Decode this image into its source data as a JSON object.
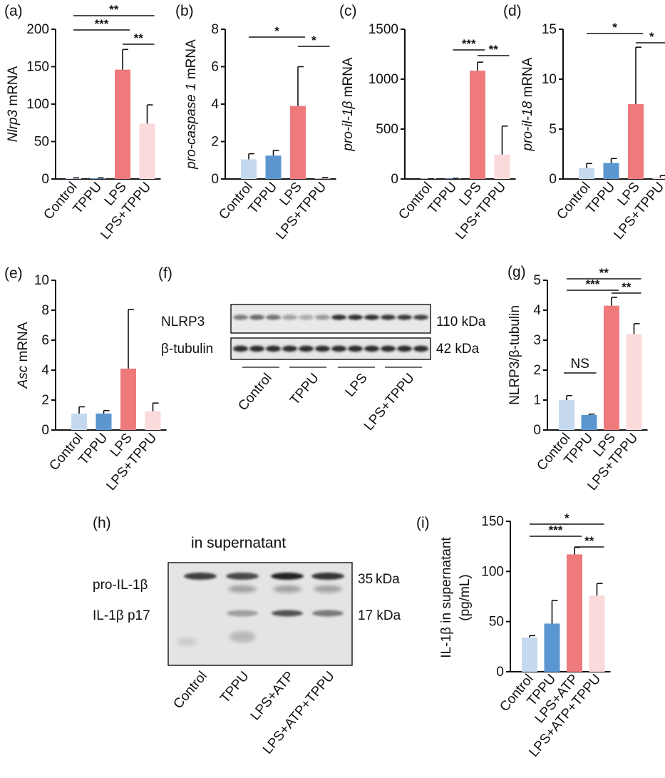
{
  "colors": {
    "control": "#c5d9ee",
    "tppu": "#5b96d0",
    "lps": "#ee7a7c",
    "lps_tppu": "#fbdadb",
    "axis": "#111111",
    "blot_bg": "#e3e3e3",
    "band": "#222222"
  },
  "panels": {
    "a": "(a)",
    "b": "(b)",
    "c": "(c)",
    "d": "(d)",
    "e": "(e)",
    "f": "(f)",
    "g": "(g)",
    "h": "(h)",
    "i": "(i)"
  },
  "chart_data": [
    {
      "panel": "(a)",
      "type": "bar",
      "ylabel_italic": "Nlrp3",
      "ylabel_rest": " mRNA",
      "categories": [
        "Control",
        "TPPU",
        "LPS",
        "LPS+TPPU"
      ],
      "values": [
        1,
        1,
        146,
        74
      ],
      "errors": [
        0.5,
        0.5,
        27,
        25
      ],
      "ylim": [
        0,
        200
      ],
      "yticks": [
        "0",
        "50",
        "100",
        "150",
        "200"
      ],
      "significance": [
        {
          "from": 0,
          "to": 3,
          "label": "**"
        },
        {
          "from": 0,
          "to": 2,
          "label": "***"
        },
        {
          "from": 2,
          "to": 3,
          "label": "**"
        }
      ]
    },
    {
      "panel": "(b)",
      "type": "bar",
      "ylabel_italic": "pro-caspase 1",
      "ylabel_rest": " mRNA",
      "categories": [
        "Control",
        "TPPU",
        "LPS",
        "LPS+TPPU"
      ],
      "values": [
        1.05,
        1.25,
        3.9,
        0.03
      ],
      "errors": [
        0.3,
        0.28,
        2.1,
        0.05
      ],
      "ylim": [
        0,
        8
      ],
      "yticks": [
        "0",
        "2",
        "4",
        "6",
        "8"
      ],
      "significance": [
        {
          "from": 0,
          "to": 2,
          "label": "*"
        },
        {
          "from": 2,
          "to": 3,
          "label": "*"
        }
      ]
    },
    {
      "panel": "(c)",
      "type": "bar",
      "ylabel_italic": "pro-il-1β",
      "ylabel_rest": " mRNA",
      "categories": [
        "Control",
        "TPPU",
        "LPS",
        "LPS+TPPU"
      ],
      "values": [
        1,
        5,
        1085,
        245
      ],
      "errors": [
        1,
        2,
        85,
        285
      ],
      "ylim": [
        0,
        1500
      ],
      "yticks": [
        "0",
        "500",
        "1000",
        "1500"
      ],
      "significance": [
        {
          "from": 1,
          "to": 2,
          "label": "***"
        },
        {
          "from": 2,
          "to": 3,
          "label": "**"
        }
      ]
    },
    {
      "panel": "(d)",
      "type": "bar",
      "ylabel_italic": "pro-il-18",
      "ylabel_rest": " mRNA",
      "categories": [
        "Control",
        "TPPU",
        "LPS",
        "LPS+TPPU"
      ],
      "values": [
        1.1,
        1.6,
        7.5,
        0.15
      ],
      "errors": [
        0.45,
        0.45,
        5.7,
        0.2
      ],
      "ylim": [
        0,
        15
      ],
      "yticks": [
        "0",
        "5",
        "10",
        "15"
      ],
      "significance": [
        {
          "from": 0,
          "to": 2,
          "label": "*"
        },
        {
          "from": 2,
          "to": 3,
          "label": "*"
        }
      ]
    },
    {
      "panel": "(e)",
      "type": "bar",
      "ylabel_italic": "Asc",
      "ylabel_rest": " mRNA",
      "categories": [
        "Control",
        "TPPU",
        "LPS",
        "LPS+TPPU"
      ],
      "values": [
        1.1,
        1.1,
        4.1,
        1.25
      ],
      "errors": [
        0.45,
        0.2,
        3.95,
        0.55
      ],
      "ylim": [
        0,
        10
      ],
      "yticks": [
        "0",
        "2",
        "4",
        "6",
        "8",
        "10"
      ],
      "significance": []
    },
    {
      "panel": "(g)",
      "type": "bar",
      "ylabel_italic": "",
      "ylabel_rest": "NLRP3/β-tubulin",
      "categories": [
        "Control",
        "TPPU",
        "LPS",
        "LPS+TPPU"
      ],
      "values": [
        1.0,
        0.5,
        4.15,
        3.2
      ],
      "errors": [
        0.15,
        0.03,
        0.28,
        0.35
      ],
      "ylim": [
        0,
        5
      ],
      "yticks": [
        "0",
        "1",
        "2",
        "3",
        "4",
        "5"
      ],
      "significance": [
        {
          "from": 0,
          "to": 1,
          "label": "NS"
        },
        {
          "from": 0,
          "to": 3,
          "label": "**"
        },
        {
          "from": 0,
          "to": 2,
          "label": "***"
        },
        {
          "from": 2,
          "to": 3,
          "label": "**"
        }
      ]
    },
    {
      "panel": "(i)",
      "type": "bar",
      "ylabel_lines": [
        "IL-1β in supernatant",
        "(pg/mL)"
      ],
      "categories": [
        "Control",
        "TPPU",
        "LPS+ATP",
        "LPS+ATP+TPPU"
      ],
      "values": [
        34,
        48,
        117,
        76
      ],
      "errors": [
        2,
        23,
        7,
        12
      ],
      "ylim": [
        0,
        150
      ],
      "yticks": [
        "0",
        "50",
        "100",
        "150"
      ],
      "significance": [
        {
          "from": 0,
          "to": 3,
          "label": "*"
        },
        {
          "from": 0,
          "to": 2,
          "label": "***"
        },
        {
          "from": 2,
          "to": 3,
          "label": "**"
        }
      ]
    }
  ],
  "blot_f": {
    "rows": [
      {
        "label": "NLRP3",
        "size": "110 kDa"
      },
      {
        "label": "β-tubulin",
        "size": "42 kDa"
      }
    ],
    "groups": [
      "Control",
      "TPPU",
      "LPS",
      "LPS+TPPU"
    ]
  },
  "blot_h": {
    "title": "in supernatant",
    "rows": [
      {
        "label": "pro-IL-1β",
        "size": "35 kDa"
      },
      {
        "label": "IL-1β p17",
        "size": "17 kDa"
      }
    ],
    "lanes": [
      "Control",
      "TPPU",
      "LPS+ATP",
      "LPS+ATP+TPPU"
    ]
  }
}
